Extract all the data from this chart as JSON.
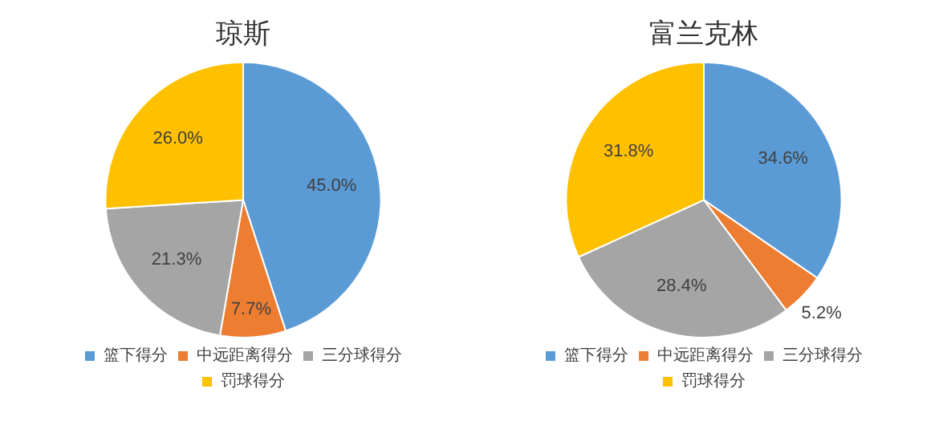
{
  "chart_data": [
    {
      "type": "pie",
      "title": "琼斯",
      "categories": [
        "篮下得分",
        "中远距离得分",
        "三分球得分",
        "罚球得分"
      ],
      "values": [
        45.0,
        7.7,
        21.3,
        26.0
      ],
      "colors": [
        "#5b9bd5",
        "#ed7d31",
        "#a5a5a5",
        "#ffc000"
      ],
      "value_labels": [
        "45.0%",
        "7.7%",
        "21.3%",
        "26.0%"
      ],
      "legend": "bottom"
    },
    {
      "type": "pie",
      "title": "富兰克林",
      "categories": [
        "篮下得分",
        "中远距离得分",
        "三分球得分",
        "罚球得分"
      ],
      "values": [
        34.6,
        5.2,
        28.4,
        31.8
      ],
      "colors": [
        "#5b9bd5",
        "#ed7d31",
        "#a5a5a5",
        "#ffc000"
      ],
      "value_labels": [
        "34.6%",
        "5.2%",
        "28.4%",
        "31.8%"
      ],
      "legend": "bottom"
    }
  ]
}
